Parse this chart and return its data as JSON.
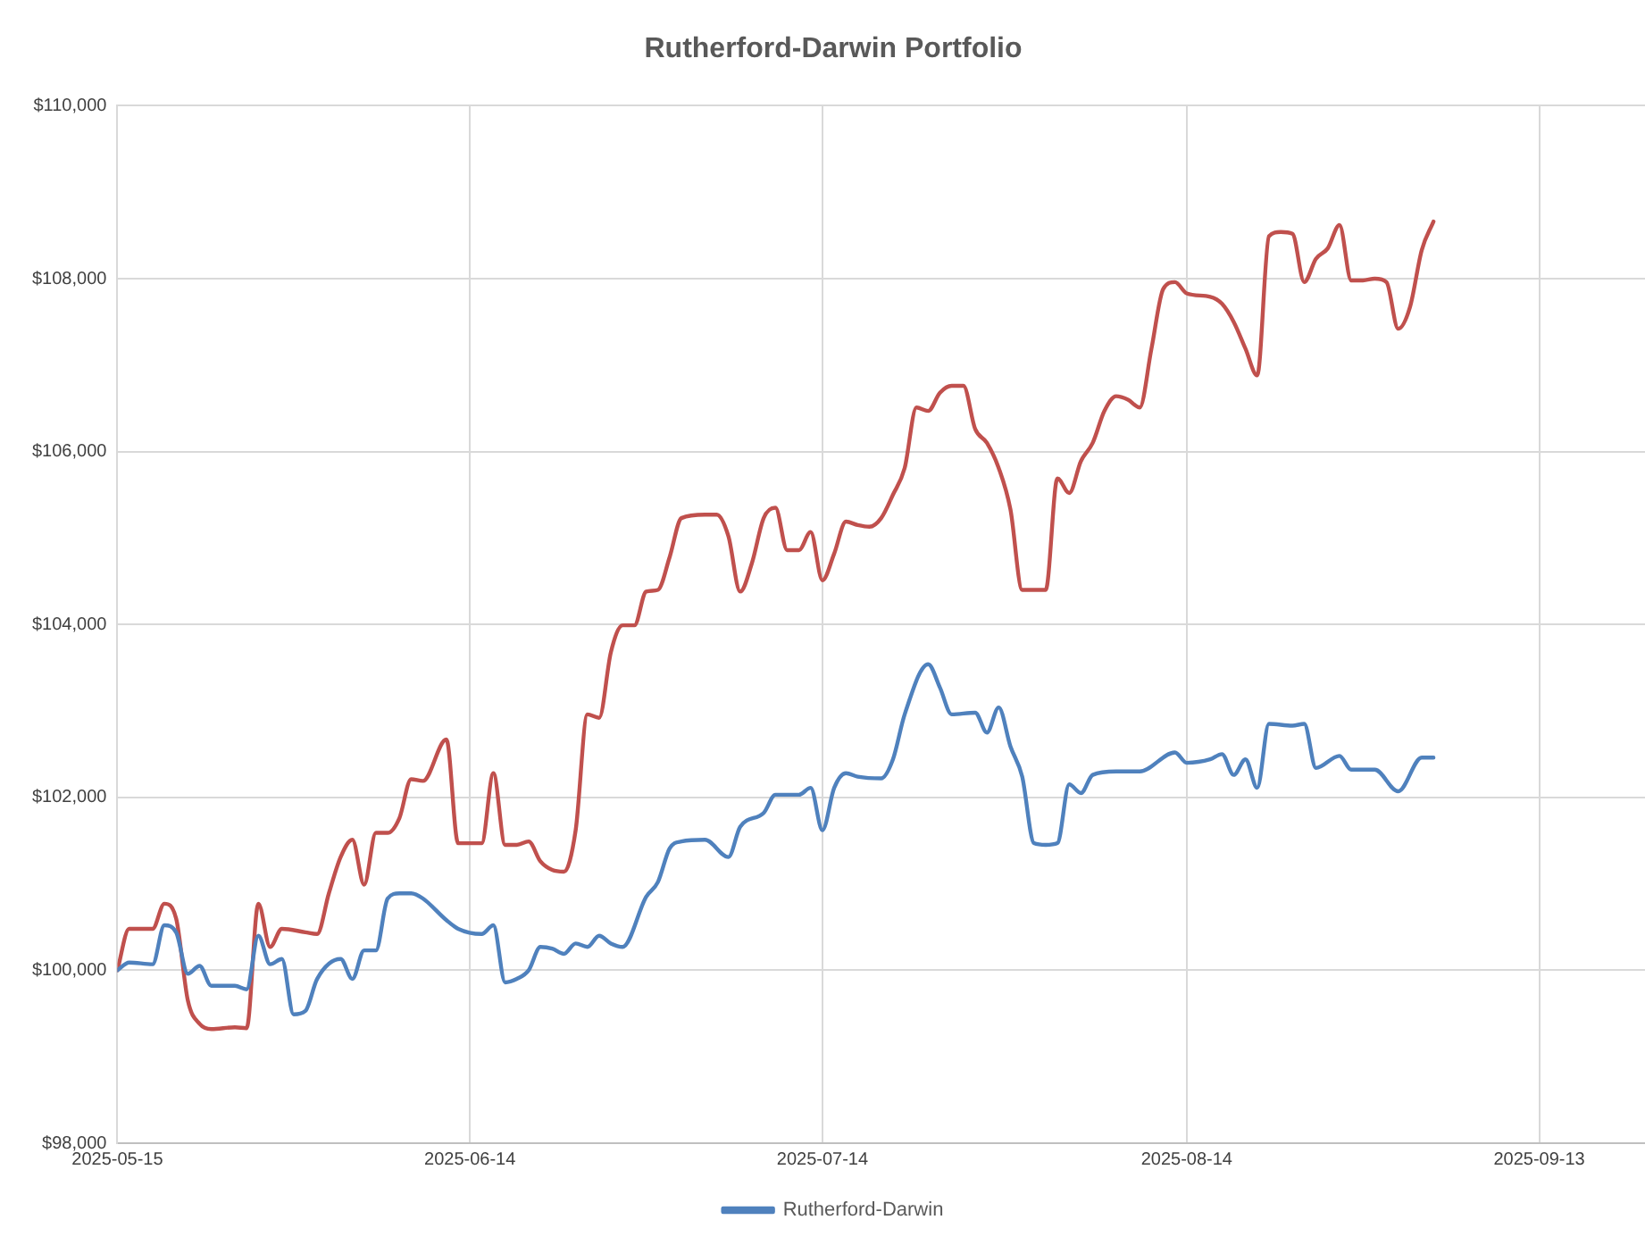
{
  "chart_data": {
    "type": "line",
    "title": "Rutherford-Darwin Portfolio",
    "xlim": [
      "2025-05-15",
      "2025-09-22"
    ],
    "xticks": [
      "2025-05-15",
      "2025-06-14",
      "2025-07-14",
      "2025-08-14",
      "2025-09-13"
    ],
    "ylim": [
      98000,
      110000
    ],
    "yticks": [
      {
        "value": 98000,
        "label": "$98,000"
      },
      {
        "value": 100000,
        "label": "$100,000"
      },
      {
        "value": 102000,
        "label": "$102,000"
      },
      {
        "value": 104000,
        "label": "$104,000"
      },
      {
        "value": 106000,
        "label": "$106,000"
      },
      {
        "value": 108000,
        "label": "$108,000"
      },
      {
        "value": 110000,
        "label": "$110,000"
      }
    ],
    "grid": true,
    "legend": "bottom",
    "marker": "none",
    "line_style": "solid",
    "series": [
      {
        "name": "Rutherford-Darwin",
        "color": "#4f81bd",
        "x": [
          "2025-05-15",
          "2025-05-16",
          "2025-05-18",
          "2025-05-19",
          "2025-05-20",
          "2025-05-21",
          "2025-05-22",
          "2025-05-23",
          "2025-05-25",
          "2025-05-26",
          "2025-05-27",
          "2025-05-28",
          "2025-05-29",
          "2025-05-30",
          "2025-05-31",
          "2025-06-01",
          "2025-06-03",
          "2025-06-04",
          "2025-06-05",
          "2025-06-06",
          "2025-06-07",
          "2025-06-08",
          "2025-06-09",
          "2025-06-10",
          "2025-06-12",
          "2025-06-13",
          "2025-06-15",
          "2025-06-16",
          "2025-06-17",
          "2025-06-18",
          "2025-06-19",
          "2025-06-20",
          "2025-06-21",
          "2025-06-22",
          "2025-06-23",
          "2025-06-24",
          "2025-06-25",
          "2025-06-26",
          "2025-06-27",
          "2025-06-29",
          "2025-06-30",
          "2025-07-01",
          "2025-07-02",
          "2025-07-04",
          "2025-07-06",
          "2025-07-07",
          "2025-07-09",
          "2025-07-10",
          "2025-07-12",
          "2025-07-13",
          "2025-07-14",
          "2025-07-15",
          "2025-07-16",
          "2025-07-17",
          "2025-07-19",
          "2025-07-20",
          "2025-07-21",
          "2025-07-23",
          "2025-07-24",
          "2025-07-25",
          "2025-07-27",
          "2025-07-28",
          "2025-07-29",
          "2025-07-30",
          "2025-07-31",
          "2025-08-01",
          "2025-08-02",
          "2025-08-03",
          "2025-08-04",
          "2025-08-05",
          "2025-08-06",
          "2025-08-08",
          "2025-08-10",
          "2025-08-13",
          "2025-08-14",
          "2025-08-16",
          "2025-08-17",
          "2025-08-18",
          "2025-08-19",
          "2025-08-20",
          "2025-08-21",
          "2025-08-23",
          "2025-08-24",
          "2025-08-25",
          "2025-08-27",
          "2025-08-28",
          "2025-08-30",
          "2025-09-01",
          "2025-09-03",
          "2025-09-04"
        ],
        "values": [
          100000,
          100090,
          100070,
          100520,
          100440,
          99960,
          100050,
          99820,
          99820,
          99780,
          100400,
          100070,
          100130,
          99490,
          99530,
          99900,
          100130,
          99900,
          100230,
          100230,
          100830,
          100890,
          100890,
          100830,
          100580,
          100480,
          100420,
          100520,
          99860,
          99900,
          100000,
          100270,
          100250,
          100190,
          100310,
          100270,
          100400,
          100310,
          100270,
          100850,
          101020,
          101410,
          101490,
          101510,
          101310,
          101660,
          101820,
          102030,
          102030,
          102110,
          101620,
          102110,
          102280,
          102240,
          102220,
          102440,
          102960,
          103540,
          103270,
          102960,
          102980,
          102750,
          103040,
          102590,
          102240,
          101470,
          101450,
          101470,
          102150,
          102050,
          102260,
          102300,
          102300,
          102520,
          102400,
          102440,
          102500,
          102260,
          102440,
          102110,
          102850,
          102830,
          102850,
          102340,
          102480,
          102320,
          102320,
          102070,
          102460,
          102460
        ]
      },
      {
        "color": "#c0504d",
        "x": [
          "2025-05-15",
          "2025-05-16",
          "2025-05-18",
          "2025-05-19",
          "2025-05-20",
          "2025-05-21",
          "2025-05-22",
          "2025-05-23",
          "2025-05-25",
          "2025-05-26",
          "2025-05-27",
          "2025-05-28",
          "2025-05-29",
          "2025-05-31",
          "2025-06-01",
          "2025-06-02",
          "2025-06-03",
          "2025-06-04",
          "2025-06-05",
          "2025-06-06",
          "2025-06-07",
          "2025-06-08",
          "2025-06-09",
          "2025-06-10",
          "2025-06-12",
          "2025-06-13",
          "2025-06-15",
          "2025-06-16",
          "2025-06-17",
          "2025-06-18",
          "2025-06-19",
          "2025-06-20",
          "2025-06-21",
          "2025-06-22",
          "2025-06-23",
          "2025-06-24",
          "2025-06-25",
          "2025-06-26",
          "2025-06-27",
          "2025-06-28",
          "2025-06-29",
          "2025-06-30",
          "2025-07-01",
          "2025-07-02",
          "2025-07-04",
          "2025-07-05",
          "2025-07-06",
          "2025-07-07",
          "2025-07-08",
          "2025-07-09",
          "2025-07-10",
          "2025-07-11",
          "2025-07-12",
          "2025-07-13",
          "2025-07-14",
          "2025-07-15",
          "2025-07-16",
          "2025-07-17",
          "2025-07-18",
          "2025-07-19",
          "2025-07-20",
          "2025-07-21",
          "2025-07-22",
          "2025-07-23",
          "2025-07-24",
          "2025-07-25",
          "2025-07-26",
          "2025-07-27",
          "2025-07-28",
          "2025-07-29",
          "2025-07-30",
          "2025-07-31",
          "2025-08-01",
          "2025-08-02",
          "2025-08-03",
          "2025-08-04",
          "2025-08-05",
          "2025-08-06",
          "2025-08-07",
          "2025-08-08",
          "2025-08-09",
          "2025-08-10",
          "2025-08-11",
          "2025-08-12",
          "2025-08-13",
          "2025-08-14",
          "2025-08-16",
          "2025-08-17",
          "2025-08-18",
          "2025-08-19",
          "2025-08-20",
          "2025-08-21",
          "2025-08-22",
          "2025-08-23",
          "2025-08-24",
          "2025-08-25",
          "2025-08-26",
          "2025-08-27",
          "2025-08-28",
          "2025-08-29",
          "2025-08-30",
          "2025-08-31",
          "2025-09-01",
          "2025-09-02",
          "2025-09-03",
          "2025-09-04"
        ],
        "values": [
          100000,
          100480,
          100480,
          100770,
          100600,
          99650,
          99380,
          99320,
          99340,
          99330,
          100770,
          100270,
          100480,
          100440,
          100420,
          100890,
          101310,
          101510,
          100990,
          101590,
          101590,
          101760,
          102210,
          102190,
          102670,
          101470,
          101470,
          102280,
          101450,
          101450,
          101490,
          101260,
          101160,
          101140,
          101620,
          102960,
          102920,
          103680,
          103990,
          103990,
          104380,
          104400,
          104780,
          105230,
          105270,
          105270,
          105020,
          104380,
          104710,
          105230,
          105350,
          104860,
          104860,
          105070,
          104510,
          104820,
          105190,
          105150,
          105130,
          105230,
          105500,
          105810,
          106510,
          106470,
          106680,
          106760,
          106760,
          106260,
          106100,
          105810,
          105330,
          104400,
          104400,
          104400,
          105690,
          105520,
          105890,
          106100,
          106470,
          106640,
          106600,
          106510,
          107190,
          107880,
          107960,
          107830,
          107790,
          107710,
          107500,
          107190,
          106880,
          108490,
          108540,
          108520,
          107960,
          108230,
          108350,
          108620,
          107980,
          107980,
          108000,
          107960,
          107420,
          107670,
          108330,
          108660
        ]
      }
    ]
  }
}
